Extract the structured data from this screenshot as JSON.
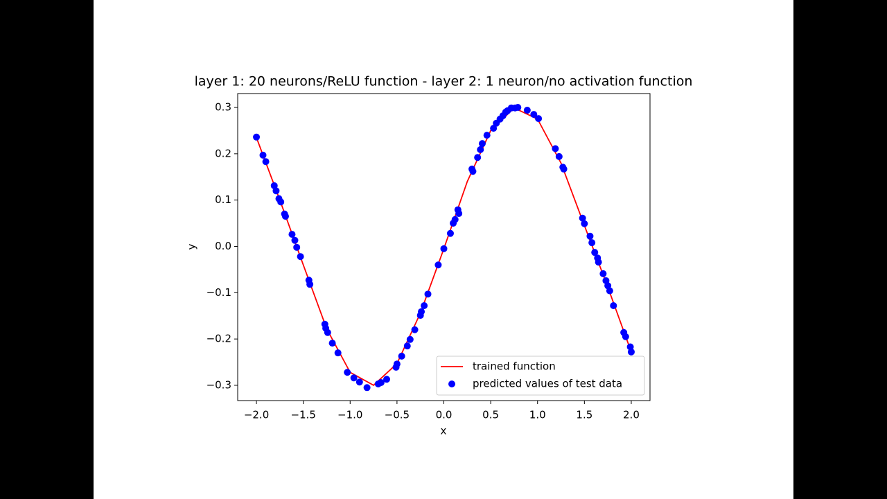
{
  "chart_data": {
    "type": "line",
    "title": "layer 1: 20 neurons/ReLU function - layer 2: 1 neuron/no activation function",
    "x_label": "x",
    "y_label": "y",
    "xlim": [
      -2.2,
      2.2
    ],
    "ylim": [
      -0.333,
      0.33
    ],
    "xticks": [
      {
        "value": -2,
        "label": "−2.0"
      },
      {
        "value": -1.5,
        "label": "−1.5"
      },
      {
        "value": -1,
        "label": "−1.0"
      },
      {
        "value": -0.5,
        "label": "−0.5"
      },
      {
        "value": 0,
        "label": "0.0"
      },
      {
        "value": 0.5,
        "label": "0.5"
      },
      {
        "value": 1,
        "label": "1.0"
      },
      {
        "value": 1.5,
        "label": "1.5"
      },
      {
        "value": 2,
        "label": "2.0"
      }
    ],
    "yticks": [
      {
        "value": -0.3,
        "label": "−0.3"
      },
      {
        "value": -0.2,
        "label": "−0.2"
      },
      {
        "value": -0.1,
        "label": "−0.1"
      },
      {
        "value": 0,
        "label": "0.0"
      },
      0.1,
      0.2,
      0.3
    ],
    "legend": "lower right",
    "series": [
      {
        "name": "trained function",
        "type": "line",
        "color": "#ff0000",
        "x": [
          -2.0,
          -1.75,
          -1.5,
          -1.25,
          -1.0,
          -0.75,
          -0.5,
          -0.25,
          0,
          0.25,
          0.5,
          0.75,
          1.0,
          1.25,
          1.5,
          1.75,
          2.0
        ],
        "values": [
          0.235,
          0.1,
          -0.04,
          -0.178,
          -0.272,
          -0.3,
          -0.253,
          -0.144,
          -0.005,
          0.14,
          0.25,
          0.299,
          0.275,
          0.18,
          0.045,
          -0.088,
          -0.228
        ]
      },
      {
        "name": "predicted values of test data",
        "type": "scatter",
        "color": "#0000ff",
        "x": [
          -2.0,
          -1.93,
          -1.9,
          -1.81,
          -1.79,
          -1.76,
          -1.74,
          -1.7,
          -1.69,
          -1.62,
          -1.59,
          -1.57,
          -1.53,
          -1.44,
          -1.43,
          -1.27,
          -1.26,
          -1.24,
          -1.19,
          -1.13,
          -1.03,
          -0.96,
          -0.9,
          -0.82,
          -0.7,
          -0.67,
          -0.61,
          -0.51,
          -0.5,
          -0.45,
          -0.39,
          -0.36,
          -0.31,
          -0.25,
          -0.24,
          -0.21,
          -0.17,
          -0.06,
          0.0,
          0.07,
          0.1,
          0.12,
          0.15,
          0.16,
          0.3,
          0.31,
          0.36,
          0.39,
          0.41,
          0.46,
          0.53,
          0.56,
          0.6,
          0.63,
          0.66,
          0.68,
          0.72,
          0.76,
          0.79,
          0.89,
          0.96,
          1.01,
          1.19,
          1.23,
          1.27,
          1.28,
          1.48,
          1.5,
          1.56,
          1.58,
          1.61,
          1.64,
          1.65,
          1.7,
          1.73,
          1.75,
          1.77,
          1.81,
          1.92,
          1.94,
          1.99,
          2.0
        ],
        "values": [
          0.236,
          0.197,
          0.183,
          0.131,
          0.12,
          0.103,
          0.096,
          0.07,
          0.065,
          0.026,
          0.013,
          -0.002,
          -0.022,
          -0.073,
          -0.082,
          -0.168,
          -0.177,
          -0.186,
          -0.209,
          -0.23,
          -0.272,
          -0.284,
          -0.293,
          -0.305,
          -0.297,
          -0.294,
          -0.287,
          -0.261,
          -0.254,
          -0.237,
          -0.215,
          -0.201,
          -0.18,
          -0.149,
          -0.141,
          -0.128,
          -0.103,
          -0.04,
          -0.005,
          0.028,
          0.05,
          0.058,
          0.079,
          0.071,
          0.167,
          0.162,
          0.192,
          0.209,
          0.222,
          0.24,
          0.255,
          0.266,
          0.275,
          0.282,
          0.29,
          0.293,
          0.299,
          0.299,
          0.3,
          0.294,
          0.285,
          0.276,
          0.211,
          0.194,
          0.171,
          0.167,
          0.061,
          0.049,
          0.022,
          0.008,
          -0.013,
          -0.025,
          -0.034,
          -0.059,
          -0.074,
          -0.085,
          -0.096,
          -0.128,
          -0.186,
          -0.195,
          -0.217,
          -0.228
        ]
      }
    ]
  }
}
